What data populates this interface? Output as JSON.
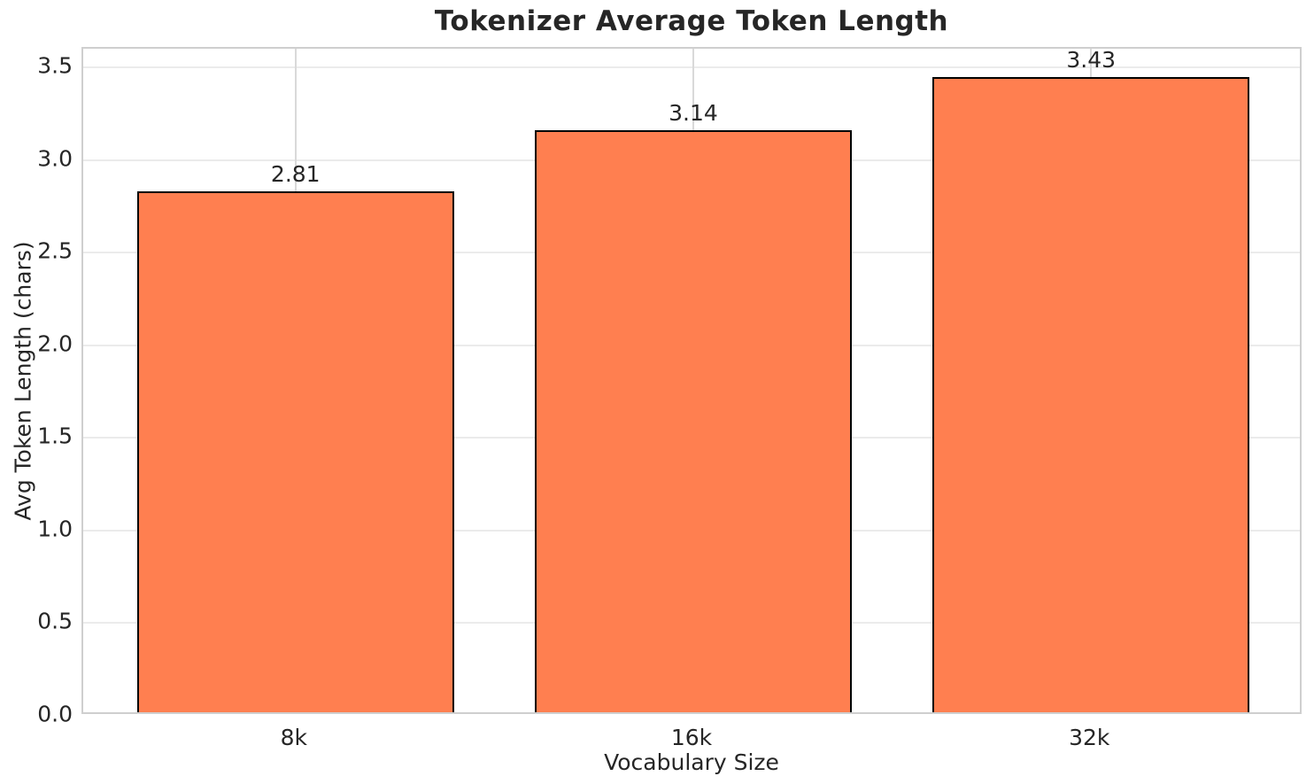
{
  "chart_data": {
    "type": "bar",
    "title": "Tokenizer Average Token Length",
    "xlabel": "Vocabulary Size",
    "ylabel": "Avg Token Length (chars)",
    "categories": [
      "8k",
      "16k",
      "32k"
    ],
    "values": [
      2.81,
      3.14,
      3.43
    ],
    "value_labels": [
      "2.81",
      "3.14",
      "3.43"
    ],
    "ylim": [
      0,
      3.6
    ],
    "yticks": [
      0.0,
      0.5,
      1.0,
      1.5,
      2.0,
      2.5,
      3.0,
      3.5
    ],
    "ytick_labels": [
      "0.0",
      "0.5",
      "1.0",
      "1.5",
      "2.0",
      "2.5",
      "3.0",
      "3.5"
    ],
    "grid": true,
    "legend": "none",
    "bar_color": "#FF7F50",
    "bar_edge_color": "#000000",
    "grid_color_horizontal": "#ebebeb",
    "grid_color_vertical": "#d9d9d9",
    "spine_color": "#cfcfcf",
    "text_color": "#262626",
    "background_color": "#ffffff"
  }
}
